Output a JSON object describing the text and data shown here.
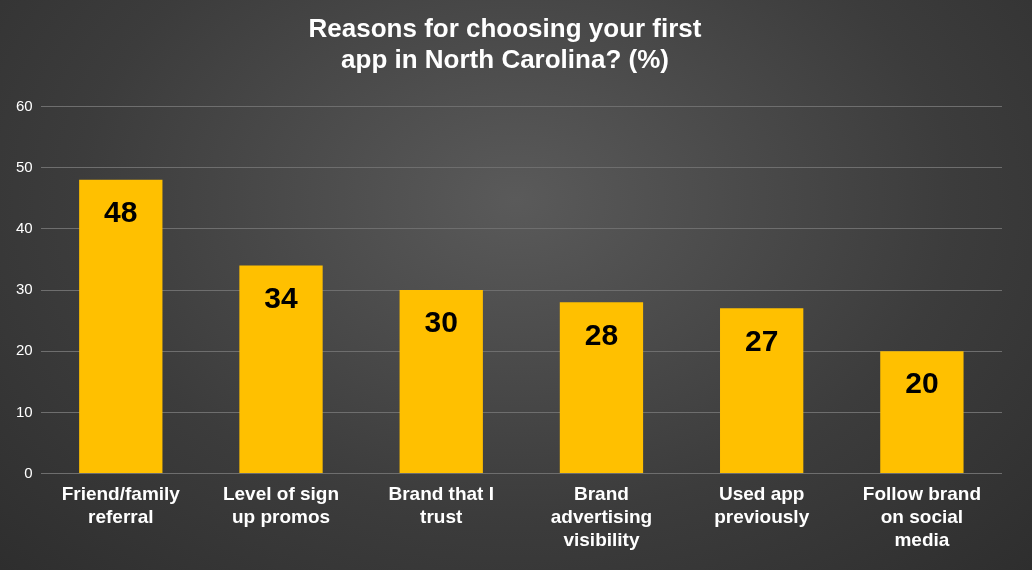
{
  "chart_data": {
    "type": "bar",
    "title": "Reasons for choosing your first app in North Carolina? (%)",
    "categories": [
      "Friend/family referral",
      "Level of sign up promos",
      "Brand that I trust",
      "Brand advertising visibility",
      "Used app previously",
      "Follow brand on social media"
    ],
    "values": [
      48,
      34,
      30,
      28,
      27,
      20
    ],
    "color": "#ffc000",
    "ylim": [
      0,
      60
    ],
    "yticks": [
      0,
      10,
      20,
      30,
      40,
      50,
      60
    ],
    "grid": "y",
    "data_labels": true,
    "legend": false
  }
}
